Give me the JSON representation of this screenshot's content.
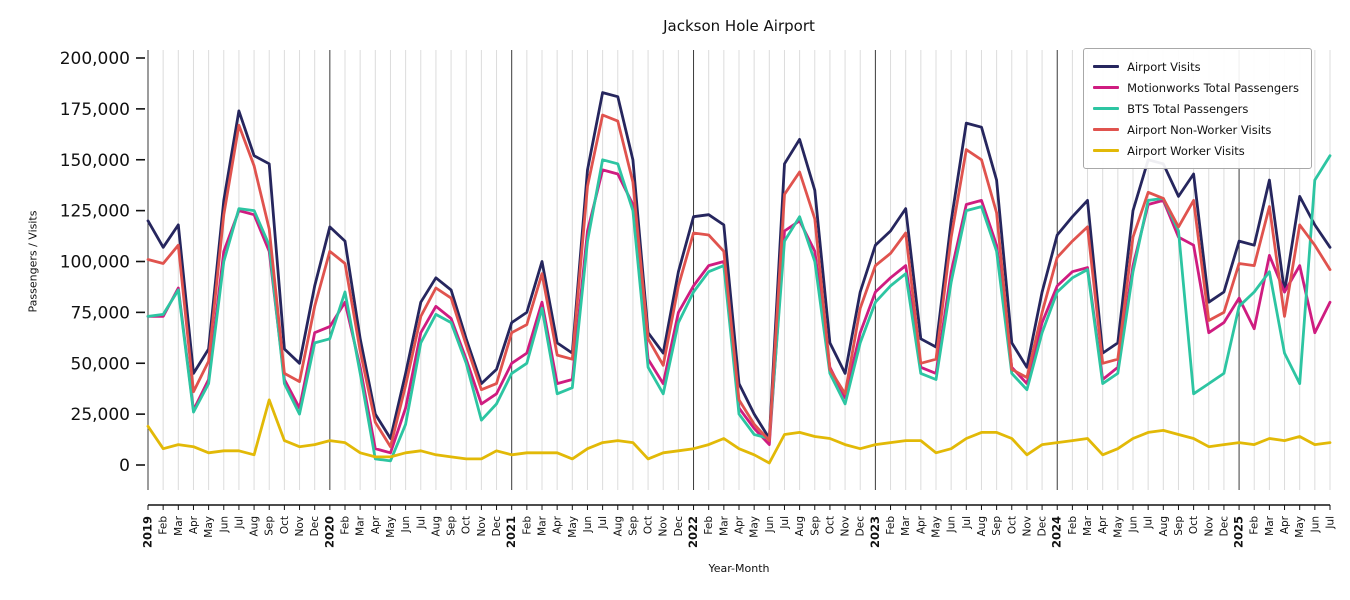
{
  "chart_data": {
    "type": "line",
    "title": "Jackson Hole Airport",
    "xlabel": "Year-Month",
    "ylabel": "Passengers / Visits",
    "ylim": [
      0,
      200000
    ],
    "grid": "vertical monthly gridlines, dark line at each January",
    "legend_position": "upper right",
    "x_labels": [
      "2019",
      "Feb",
      "Mar",
      "Apr",
      "May",
      "Jun",
      "Jul",
      "Aug",
      "Sep",
      "Oct",
      "Nov",
      "Dec",
      "2020",
      "Feb",
      "Mar",
      "Apr",
      "May",
      "Jun",
      "Jul",
      "Aug",
      "Sep",
      "Oct",
      "Nov",
      "Dec",
      "2021",
      "Feb",
      "Mar",
      "Apr",
      "May",
      "Jun",
      "Jul",
      "Aug",
      "Sep",
      "Oct",
      "Nov",
      "Dec",
      "2022",
      "Feb",
      "Mar",
      "Apr",
      "May",
      "Jun",
      "Jul",
      "Aug",
      "Sep",
      "Oct",
      "Nov",
      "Dec",
      "2023",
      "Feb",
      "Mar",
      "Apr",
      "May",
      "Jun",
      "Jul",
      "Aug",
      "Sep",
      "Oct",
      "Nov",
      "Dec",
      "2024",
      "Feb",
      "Mar",
      "Apr",
      "May",
      "Jun",
      "Jul",
      "Aug",
      "Sep",
      "Oct",
      "Nov",
      "Dec",
      "2025",
      "Feb",
      "Mar",
      "Apr",
      "May",
      "Jun",
      "Jul"
    ],
    "year_indices": [
      0,
      12,
      24,
      36,
      48,
      60,
      72
    ],
    "y_ticks": [
      {
        "value": 0,
        "label": "0"
      },
      {
        "value": 25000,
        "label": "25,000"
      },
      {
        "value": 50000,
        "label": "50,000"
      },
      {
        "value": 75000,
        "label": "75,000"
      },
      {
        "value": 100000,
        "label": "100,000"
      },
      {
        "value": 125000,
        "label": "125,000"
      },
      {
        "value": 150000,
        "label": "150,000"
      },
      {
        "value": 175000,
        "label": "175,000"
      },
      {
        "value": 200000,
        "label": "200,000"
      }
    ],
    "series": [
      {
        "name": "Airport Visits",
        "color": "#26265e",
        "values": [
          120000,
          107000,
          118000,
          45000,
          57000,
          130000,
          174000,
          152000,
          148000,
          57000,
          50000,
          88000,
          117000,
          110000,
          62000,
          25000,
          13000,
          45000,
          80000,
          92000,
          86000,
          62000,
          40000,
          47000,
          70000,
          75000,
          100000,
          60000,
          55000,
          145000,
          183000,
          181000,
          150000,
          65000,
          55000,
          95000,
          122000,
          123000,
          118000,
          40000,
          25000,
          13000,
          148000,
          160000,
          135000,
          60000,
          45000,
          85000,
          108000,
          115000,
          126000,
          62000,
          58000,
          120000,
          168000,
          166000,
          140000,
          60000,
          48000,
          85000,
          113000,
          122000,
          130000,
          55000,
          60000,
          125000,
          150000,
          148000,
          132000,
          143000,
          80000,
          85000,
          110000,
          108000,
          140000,
          85000,
          132000,
          118000,
          107000
        ]
      },
      {
        "name": "Motionworks Total Passengers",
        "color": "#cf1c80",
        "values": [
          73000,
          73000,
          87000,
          27000,
          42000,
          105000,
          125000,
          123000,
          105000,
          42000,
          28000,
          65000,
          68000,
          80000,
          48000,
          8000,
          6000,
          28000,
          65000,
          78000,
          72000,
          52000,
          30000,
          35000,
          50000,
          55000,
          80000,
          40000,
          42000,
          115000,
          145000,
          143000,
          128000,
          52000,
          40000,
          75000,
          88000,
          98000,
          100000,
          28000,
          18000,
          10000,
          115000,
          120000,
          105000,
          48000,
          33000,
          65000,
          85000,
          92000,
          98000,
          48000,
          45000,
          95000,
          128000,
          130000,
          108000,
          48000,
          40000,
          70000,
          88000,
          95000,
          97000,
          42000,
          48000,
          98000,
          128000,
          130000,
          112000,
          108000,
          65000,
          70000,
          82000,
          67000,
          103000,
          85000,
          98000,
          65000,
          80000
        ]
      },
      {
        "name": "BTS Total Passengers",
        "color": "#2dc5a2",
        "values": [
          73000,
          74000,
          86000,
          26000,
          40000,
          100000,
          126000,
          125000,
          108000,
          40000,
          25000,
          60000,
          62000,
          85000,
          45000,
          3000,
          2000,
          20000,
          60000,
          74000,
          70000,
          50000,
          22000,
          30000,
          45000,
          50000,
          77000,
          35000,
          38000,
          110000,
          150000,
          148000,
          125000,
          48000,
          35000,
          70000,
          85000,
          95000,
          98000,
          25000,
          15000,
          13000,
          110000,
          122000,
          100000,
          45000,
          30000,
          60000,
          80000,
          88000,
          94000,
          45000,
          42000,
          90000,
          125000,
          127000,
          105000,
          45000,
          37000,
          65000,
          85000,
          92000,
          96000,
          40000,
          45000,
          95000,
          130000,
          131000,
          115000,
          35000,
          40000,
          45000,
          78000,
          85000,
          95000,
          55000,
          40000,
          140000,
          152000
        ]
      },
      {
        "name": "Airport Non-Worker Visits",
        "color": "#e0534e",
        "values": [
          101000,
          99000,
          108000,
          36000,
          51000,
          123000,
          167000,
          147000,
          116000,
          45000,
          41000,
          78000,
          105000,
          99000,
          56000,
          21000,
          9000,
          39000,
          73000,
          87000,
          82000,
          59000,
          37000,
          40000,
          65000,
          69000,
          94000,
          54000,
          52000,
          137000,
          172000,
          169000,
          139000,
          62000,
          49000,
          88000,
          114000,
          113000,
          105000,
          32000,
          20000,
          12000,
          133000,
          144000,
          121000,
          47000,
          35000,
          77000,
          98000,
          104000,
          114000,
          50000,
          52000,
          112000,
          155000,
          150000,
          124000,
          47000,
          43000,
          75000,
          102000,
          110000,
          117000,
          50000,
          52000,
          112000,
          134000,
          131000,
          117000,
          130000,
          71000,
          75000,
          99000,
          98000,
          127000,
          73000,
          118000,
          108000,
          96000
        ]
      },
      {
        "name": "Airport Worker Visits",
        "color": "#e2b907",
        "values": [
          19000,
          8000,
          10000,
          9000,
          6000,
          7000,
          7000,
          5000,
          32000,
          12000,
          9000,
          10000,
          12000,
          11000,
          6000,
          4000,
          4000,
          6000,
          7000,
          5000,
          4000,
          3000,
          3000,
          7000,
          5000,
          6000,
          6000,
          6000,
          3000,
          8000,
          11000,
          12000,
          11000,
          3000,
          6000,
          7000,
          8000,
          10000,
          13000,
          8000,
          5000,
          1000,
          15000,
          16000,
          14000,
          13000,
          10000,
          8000,
          10000,
          11000,
          12000,
          12000,
          6000,
          8000,
          13000,
          16000,
          16000,
          13000,
          5000,
          10000,
          11000,
          12000,
          13000,
          5000,
          8000,
          13000,
          16000,
          17000,
          15000,
          13000,
          9000,
          10000,
          11000,
          10000,
          13000,
          12000,
          14000,
          10000,
          11000
        ]
      }
    ]
  }
}
